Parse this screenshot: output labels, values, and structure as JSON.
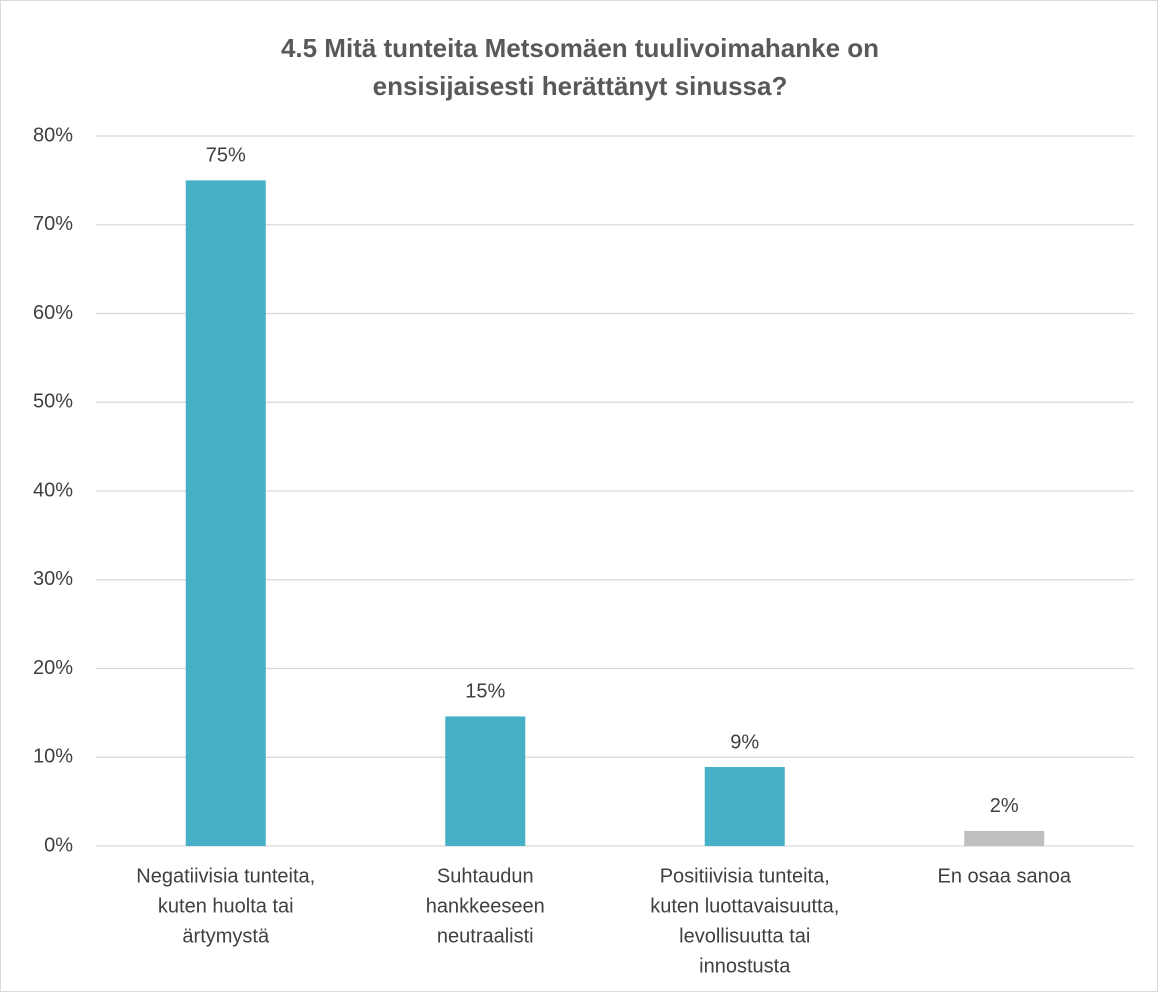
{
  "chart_data": {
    "type": "bar",
    "title": "4.5 Mitä tunteita Metsomäen tuulivoimahanke on ensisijaisesti herättänyt sinussa?",
    "categories": [
      [
        "Negatiivisia tunteita,",
        "kuten huolta tai",
        "ärtymystä"
      ],
      [
        "Suhtaudun",
        "hankkeeseen",
        "neutraalisti"
      ],
      [
        "Positiivisia tunteita,",
        "kuten luottavaisuutta,",
        "levollisuutta tai",
        "innostusta"
      ],
      [
        "En osaa sanoa"
      ]
    ],
    "values": [
      75,
      14.6,
      8.9,
      1.7
    ],
    "value_labels": [
      "75%",
      "15%",
      "9%",
      "2%"
    ],
    "colors": [
      "#45b0c6",
      "#45b0c6",
      "#45b0c6",
      "#bfbfbf"
    ],
    "ylim": [
      0,
      80
    ],
    "yticks": [
      {
        "value": 0,
        "label": "0%"
      },
      {
        "value": 10,
        "label": "10%"
      },
      {
        "value": 20,
        "label": "20%"
      },
      {
        "value": 30,
        "label": "30%"
      },
      {
        "value": 40,
        "label": "40%"
      },
      {
        "value": 50,
        "label": "50%"
      },
      {
        "value": 60,
        "label": "60%"
      },
      {
        "value": 70,
        "label": "70%"
      },
      {
        "value": 80,
        "label": "80%"
      }
    ],
    "grid": true
  }
}
